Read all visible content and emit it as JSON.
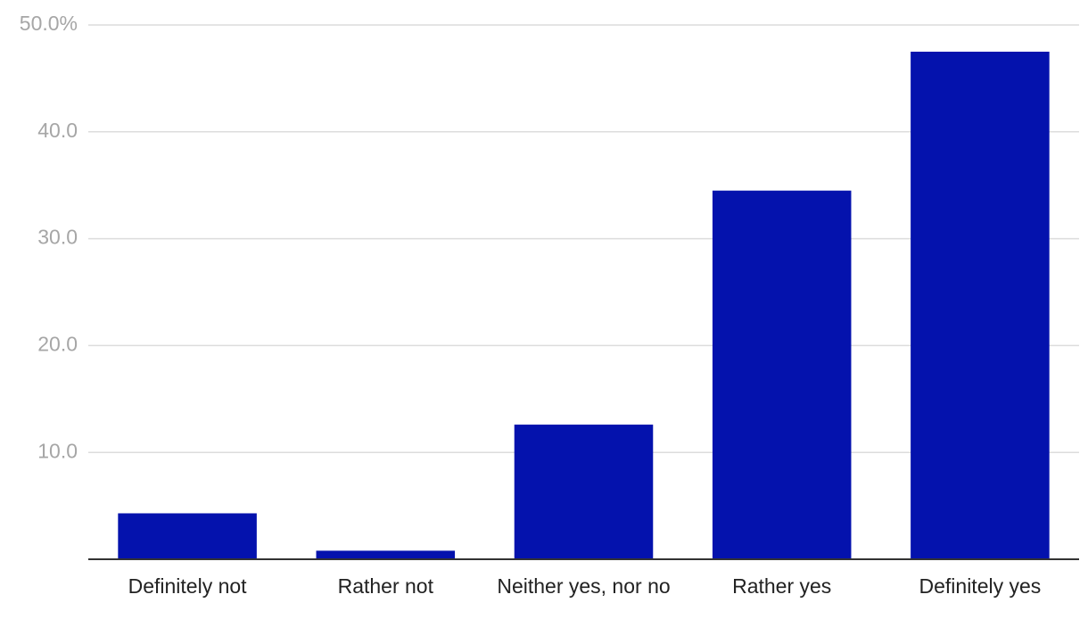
{
  "chart_data": {
    "type": "bar",
    "categories": [
      "Definitely not",
      "Rather not",
      "Neither yes, nor no",
      "Rather yes",
      "Definitely yes"
    ],
    "values": [
      4.3,
      0.8,
      12.6,
      34.5,
      47.5
    ],
    "color": "#0412ad",
    "ylim": [
      0,
      50
    ],
    "yticks": [
      {
        "value": 10,
        "label": "10.0"
      },
      {
        "value": 20,
        "label": "20.0"
      },
      {
        "value": 30,
        "label": "30.0"
      },
      {
        "value": 40,
        "label": "40.0"
      },
      {
        "value": 50,
        "label": "50.0%"
      }
    ],
    "grid": true
  }
}
